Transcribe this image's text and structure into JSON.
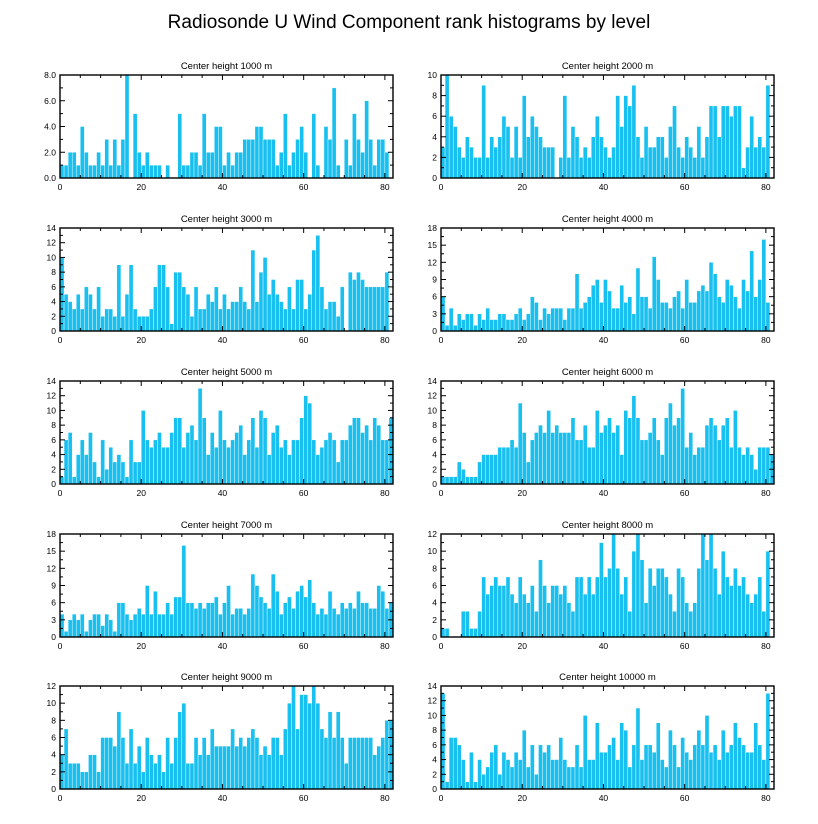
{
  "title": "Radiosonde U Wind Component rank histograms by level",
  "bar_color": "#18c0f0",
  "chart_data": [
    {
      "type": "bar",
      "title": "Center height 1000 m",
      "xlim": [
        0,
        82
      ],
      "xticks": [
        0,
        20,
        40,
        60,
        80
      ],
      "ylim": [
        0,
        8
      ],
      "yticks": [
        "0.0",
        "2.0",
        "4.0",
        "6.0",
        "8.0"
      ],
      "values": [
        1,
        1,
        2,
        2,
        1,
        4,
        2,
        1,
        1,
        2,
        1,
        3,
        1,
        3,
        1,
        3,
        8,
        0,
        5,
        2,
        1,
        2,
        1,
        1,
        1,
        0,
        1,
        0,
        0,
        5,
        1,
        1,
        2,
        2,
        1,
        5,
        2,
        2,
        4,
        4,
        1,
        2,
        1,
        2,
        2,
        3,
        3,
        3,
        4,
        4,
        3,
        3,
        3,
        1,
        2,
        5,
        1,
        2,
        3,
        4,
        2,
        0,
        5,
        1,
        0,
        4,
        3,
        7,
        1,
        0,
        3,
        1,
        5,
        3,
        2,
        6,
        3,
        1,
        3,
        3,
        2,
        0
      ]
    },
    {
      "type": "bar",
      "title": "Center height 2000 m",
      "xlim": [
        0,
        82
      ],
      "xticks": [
        0,
        20,
        40,
        60,
        80
      ],
      "ylim": [
        0,
        10
      ],
      "yticks": [
        "0",
        "2",
        "4",
        "6",
        "8",
        "10"
      ],
      "values": [
        3,
        10,
        6,
        5,
        3,
        2,
        4,
        3,
        2,
        2,
        9,
        2,
        4,
        3,
        4,
        6,
        5,
        2,
        5,
        2,
        8,
        4,
        6,
        5,
        4,
        3,
        3,
        3,
        0,
        2,
        8,
        2,
        5,
        4,
        2,
        3,
        2,
        4,
        6,
        4,
        3,
        2,
        3,
        8,
        5,
        8,
        7,
        9,
        4,
        2,
        5,
        3,
        3,
        4,
        4,
        2,
        5,
        7,
        3,
        2,
        4,
        3,
        2,
        5,
        2,
        4,
        7,
        7,
        4,
        7,
        7,
        6,
        7,
        7,
        1,
        3,
        6,
        3,
        4,
        3,
        9,
        0
      ]
    },
    {
      "type": "bar",
      "title": "Center height 3000 m",
      "xlim": [
        0,
        82
      ],
      "xticks": [
        0,
        20,
        40,
        60,
        80
      ],
      "ylim": [
        0,
        14
      ],
      "yticks": [
        "0",
        "2",
        "4",
        "6",
        "8",
        "10",
        "12",
        "14"
      ],
      "values": [
        10,
        5,
        4,
        3,
        5,
        3,
        6,
        5,
        3,
        6,
        2,
        3,
        3,
        2,
        9,
        2,
        5,
        9,
        3,
        2,
        2,
        2,
        3,
        6,
        9,
        9,
        6,
        1,
        8,
        8,
        6,
        5,
        2,
        6,
        3,
        3,
        5,
        4,
        6,
        3,
        5,
        3,
        4,
        4,
        6,
        4,
        3,
        11,
        4,
        8,
        10,
        5,
        7,
        5,
        4,
        3,
        6,
        3,
        7,
        7,
        3,
        5,
        11,
        13,
        6,
        3,
        4,
        4,
        2,
        6,
        0,
        8,
        7,
        8,
        7,
        6,
        6,
        6,
        6,
        6,
        8,
        0
      ]
    },
    {
      "type": "bar",
      "title": "Center height 4000 m",
      "xlim": [
        0,
        82
      ],
      "xticks": [
        0,
        20,
        40,
        60,
        80
      ],
      "ylim": [
        0,
        18
      ],
      "yticks": [
        "0",
        "3",
        "6",
        "9",
        "12",
        "15",
        "18"
      ],
      "values": [
        6,
        1,
        4,
        1,
        3,
        2,
        3,
        3,
        1,
        3,
        2,
        4,
        2,
        2,
        3,
        3,
        2,
        2,
        3,
        4,
        2,
        3,
        6,
        5,
        2,
        4,
        3,
        4,
        4,
        4,
        2,
        4,
        4,
        10,
        4,
        5,
        6,
        8,
        9,
        5,
        9,
        7,
        4,
        4,
        8,
        5,
        6,
        3,
        11,
        6,
        6,
        4,
        13,
        9,
        5,
        5,
        4,
        6,
        7,
        4,
        9,
        5,
        5,
        7,
        8,
        7,
        12,
        10,
        6,
        5,
        9,
        8,
        6,
        4,
        9,
        7,
        14,
        6,
        9,
        16,
        5,
        0
      ]
    },
    {
      "type": "bar",
      "title": "Center height 5000 m",
      "xlim": [
        0,
        82
      ],
      "xticks": [
        0,
        20,
        40,
        60,
        80
      ],
      "ylim": [
        0,
        14
      ],
      "yticks": [
        "0",
        "2",
        "4",
        "6",
        "8",
        "10",
        "12",
        "14"
      ],
      "values": [
        1,
        6,
        7,
        1,
        4,
        6,
        4,
        7,
        3,
        1,
        6,
        2,
        5,
        3,
        4,
        3,
        1,
        6,
        3,
        3,
        10,
        6,
        5,
        6,
        7,
        5,
        5,
        7,
        9,
        9,
        5,
        7,
        8,
        6,
        13,
        9,
        4,
        7,
        5,
        10,
        6,
        5,
        6,
        7,
        8,
        4,
        6,
        9,
        5,
        10,
        9,
        4,
        7,
        8,
        5,
        6,
        4,
        6,
        6,
        9,
        12,
        11,
        6,
        4,
        5,
        6,
        7,
        6,
        3,
        6,
        6,
        8,
        9,
        9,
        7,
        8,
        6,
        9,
        8,
        6,
        6,
        9,
        0
      ]
    },
    {
      "type": "bar",
      "title": "Center height 6000 m",
      "xlim": [
        0,
        82
      ],
      "xticks": [
        0,
        20,
        40,
        60,
        80
      ],
      "ylim": [
        0,
        14
      ],
      "yticks": [
        "0",
        "2",
        "4",
        "6",
        "8",
        "10",
        "12",
        "14"
      ],
      "values": [
        1,
        1,
        1,
        1,
        3,
        2,
        1,
        1,
        1,
        3,
        4,
        4,
        4,
        4,
        5,
        5,
        5,
        6,
        5,
        11,
        7,
        3,
        6,
        7,
        8,
        7,
        10,
        7,
        8,
        7,
        7,
        7,
        9,
        6,
        6,
        8,
        5,
        5,
        10,
        7,
        8,
        9,
        7,
        8,
        4,
        10,
        9,
        12,
        9,
        6,
        6,
        7,
        9,
        6,
        4,
        9,
        11,
        8,
        9,
        13,
        5,
        7,
        4,
        5,
        5,
        8,
        9,
        8,
        6,
        8,
        9,
        5,
        10,
        5,
        4,
        5,
        4,
        2,
        5,
        5,
        5,
        4,
        0
      ]
    },
    {
      "type": "bar",
      "title": "Center height 7000 m",
      "xlim": [
        0,
        82
      ],
      "xticks": [
        0,
        20,
        40,
        60,
        80
      ],
      "ylim": [
        0,
        18
      ],
      "yticks": [
        "0",
        "3",
        "6",
        "9",
        "12",
        "15",
        "18"
      ],
      "values": [
        4,
        1,
        3,
        4,
        3,
        4,
        1,
        3,
        4,
        4,
        2,
        4,
        3,
        1,
        6,
        6,
        4,
        3,
        4,
        5,
        4,
        9,
        4,
        8,
        4,
        4,
        6,
        4,
        7,
        7,
        16,
        6,
        6,
        5,
        6,
        5,
        6,
        6,
        7,
        4,
        6,
        9,
        4,
        5,
        5,
        4,
        5,
        11,
        9,
        7,
        6,
        5,
        11,
        8,
        4,
        6,
        7,
        5,
        8,
        9,
        7,
        10,
        6,
        4,
        5,
        4,
        8,
        5,
        4,
        6,
        5,
        6,
        5,
        8,
        6,
        6,
        5,
        5,
        9,
        8,
        5,
        6,
        0
      ]
    },
    {
      "type": "bar",
      "title": "Center height 8000 m",
      "xlim": [
        0,
        82
      ],
      "xticks": [
        0,
        20,
        40,
        60,
        80
      ],
      "ylim": [
        0,
        12
      ],
      "yticks": [
        "0",
        "2",
        "4",
        "6",
        "8",
        "10",
        "12"
      ],
      "values": [
        1,
        1,
        0,
        0,
        0,
        3,
        3,
        1,
        1,
        3,
        7,
        5,
        6,
        7,
        6,
        6,
        7,
        5,
        4,
        7,
        5,
        4,
        6,
        3,
        9,
        6,
        4,
        6,
        6,
        5,
        6,
        4,
        3,
        7,
        7,
        5,
        7,
        5,
        7,
        11,
        7,
        8,
        12,
        8,
        5,
        7,
        3,
        10,
        12,
        9,
        4,
        8,
        6,
        8,
        8,
        7,
        5,
        3,
        8,
        7,
        4,
        3,
        4,
        8,
        12,
        9,
        12,
        8,
        5,
        10,
        7,
        6,
        8,
        6,
        7,
        5,
        4,
        5,
        7,
        3,
        10,
        0
      ]
    },
    {
      "type": "bar",
      "title": "Center height 9000 m",
      "xlim": [
        0,
        82
      ],
      "xticks": [
        0,
        20,
        40,
        60,
        80
      ],
      "ylim": [
        0,
        12
      ],
      "yticks": [
        "0",
        "2",
        "4",
        "6",
        "8",
        "10",
        "12"
      ],
      "values": [
        4,
        7,
        3,
        3,
        3,
        2,
        2,
        4,
        4,
        2,
        6,
        6,
        6,
        5,
        9,
        6,
        3,
        7,
        3,
        5,
        2,
        6,
        4,
        3,
        4,
        2,
        6,
        3,
        6,
        9,
        10,
        3,
        3,
        6,
        4,
        6,
        4,
        7,
        5,
        5,
        5,
        5,
        7,
        5,
        6,
        5,
        6,
        7,
        6,
        4,
        5,
        4,
        6,
        6,
        4,
        7,
        10,
        12,
        7,
        11,
        11,
        10,
        12,
        10,
        7,
        6,
        9,
        6,
        9,
        6,
        3,
        6,
        6,
        6,
        6,
        6,
        6,
        4,
        5,
        6,
        8,
        8,
        0
      ]
    },
    {
      "type": "bar",
      "title": "Center height 10000 m",
      "xlim": [
        0,
        82
      ],
      "xticks": [
        0,
        20,
        40,
        60,
        80
      ],
      "ylim": [
        0,
        14
      ],
      "yticks": [
        "0",
        "2",
        "4",
        "6",
        "8",
        "10",
        "12",
        "14"
      ],
      "values": [
        13,
        1,
        7,
        7,
        6,
        4,
        1,
        5,
        1,
        4,
        2,
        3,
        5,
        6,
        2,
        5,
        4,
        3,
        5,
        4,
        8,
        3,
        6,
        2,
        6,
        5,
        6,
        4,
        4,
        7,
        4,
        3,
        3,
        6,
        3,
        10,
        4,
        4,
        9,
        5,
        5,
        6,
        7,
        4,
        9,
        8,
        3,
        6,
        11,
        4,
        6,
        6,
        5,
        9,
        4,
        3,
        8,
        6,
        3,
        7,
        5,
        4,
        6,
        8,
        6,
        10,
        5,
        6,
        4,
        8,
        5,
        6,
        9,
        7,
        6,
        5,
        5,
        9,
        6,
        4,
        13,
        0
      ]
    }
  ]
}
